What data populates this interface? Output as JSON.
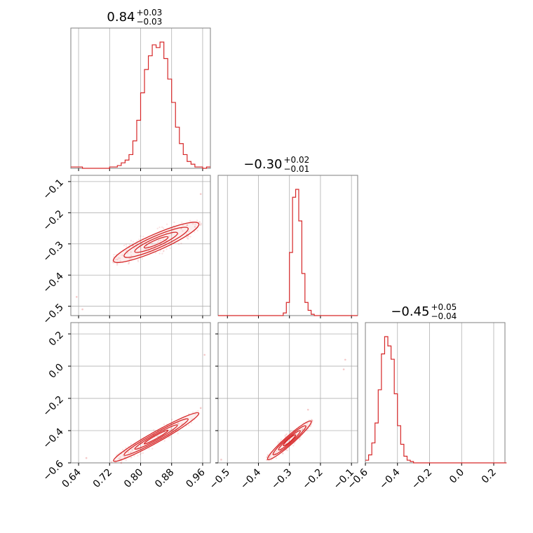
{
  "chart_data": {
    "type": "corner",
    "colors": {
      "series": "#d62728",
      "grid": "#b0b0b0",
      "frame": "#7f7f7f"
    },
    "grid": true,
    "parameters": [
      {
        "median": "0.84",
        "plus": "+0.03",
        "minus": "−0.03",
        "range": [
          0.62,
          0.98
        ],
        "ticks": [
          0.64,
          0.72,
          0.8,
          0.88,
          0.96
        ],
        "tick_labels": [
          "0.64",
          "0.72",
          "0.80",
          "0.88",
          "0.96"
        ]
      },
      {
        "median": "−0.30",
        "plus": "+0.02",
        "minus": "−0.01",
        "range": [
          -0.53,
          -0.08
        ],
        "ticks": [
          -0.5,
          -0.4,
          -0.3,
          -0.2,
          -0.1
        ],
        "tick_labels": [
          "−0.5",
          "−0.4",
          "−0.3",
          "−0.2",
          "−0.1"
        ]
      },
      {
        "median": "−0.45",
        "plus": "+0.05",
        "minus": "−0.04",
        "range": [
          -0.6,
          0.27
        ],
        "ticks": [
          -0.6,
          -0.4,
          -0.2,
          0.0,
          0.2
        ],
        "tick_labels": [
          "−0.6",
          "−0.4",
          "−0.2",
          "0.0",
          "0.2"
        ]
      }
    ],
    "hist1": {
      "x": [
        0.62,
        0.63,
        0.64,
        0.65,
        0.66,
        0.67,
        0.68,
        0.69,
        0.7,
        0.71,
        0.72,
        0.73,
        0.74,
        0.75,
        0.76,
        0.77,
        0.78,
        0.79,
        0.8,
        0.81,
        0.82,
        0.83,
        0.84,
        0.85,
        0.86,
        0.87,
        0.88,
        0.89,
        0.9,
        0.91,
        0.92,
        0.93,
        0.94,
        0.95,
        0.96,
        0.97
      ],
      "counts": [
        1,
        1,
        1,
        0,
        0,
        0,
        0,
        0,
        0,
        0,
        1,
        1,
        2,
        4,
        6,
        10,
        20,
        35,
        55,
        72,
        82,
        90,
        88,
        92,
        80,
        65,
        48,
        30,
        18,
        10,
        5,
        3,
        1,
        1,
        0,
        1
      ]
    },
    "hist2": {
      "x": [
        -0.53,
        -0.52,
        -0.51,
        -0.5,
        -0.49,
        -0.48,
        -0.47,
        -0.46,
        -0.45,
        -0.44,
        -0.43,
        -0.42,
        -0.41,
        -0.4,
        -0.39,
        -0.38,
        -0.37,
        -0.36,
        -0.35,
        -0.34,
        -0.33,
        -0.32,
        -0.31,
        -0.3,
        -0.29,
        -0.28,
        -0.27,
        -0.26,
        -0.25,
        -0.24,
        -0.23,
        -0.22,
        -0.21,
        -0.2,
        -0.19,
        -0.18,
        -0.17,
        -0.16,
        -0.15,
        -0.14,
        -0.13,
        -0.12,
        -0.11,
        -0.1,
        -0.09
      ],
      "counts": [
        0,
        0,
        0,
        0,
        0,
        0,
        0,
        0,
        0,
        0,
        0,
        0,
        0,
        0,
        0,
        0,
        0,
        0,
        0,
        0,
        0,
        2,
        10,
        48,
        90,
        96,
        72,
        32,
        10,
        4,
        1,
        0,
        0,
        0,
        0,
        0,
        0,
        0,
        0,
        0,
        0,
        0,
        0,
        0,
        0
      ]
    },
    "hist3": {
      "x": [
        -0.6,
        -0.58,
        -0.56,
        -0.54,
        -0.52,
        -0.5,
        -0.48,
        -0.46,
        -0.44,
        -0.42,
        -0.4,
        -0.38,
        -0.36,
        -0.34,
        -0.32,
        -0.3,
        -0.28,
        -0.26,
        -0.24,
        -0.22,
        -0.2,
        -0.18,
        -0.16,
        -0.14,
        -0.12,
        -0.1,
        -0.08,
        -0.06,
        -0.04,
        -0.02,
        0.0,
        0.02,
        0.04,
        0.06,
        0.08,
        0.1,
        0.12,
        0.14,
        0.16,
        0.18,
        0.2,
        0.22,
        0.24,
        0.26
      ],
      "counts": [
        2,
        6,
        15,
        30,
        55,
        82,
        95,
        88,
        78,
        52,
        28,
        14,
        5,
        2,
        1,
        0,
        0,
        0,
        0,
        0,
        0,
        0,
        0,
        0,
        0,
        0,
        0,
        0,
        0,
        0,
        0,
        0,
        0,
        0,
        0,
        0,
        0,
        0,
        0,
        0,
        0,
        0,
        0,
        0
      ]
    },
    "scatter_21": {
      "points": [
        [
          0.635,
          -0.47
        ],
        [
          0.65,
          -0.51
        ],
        [
          0.955,
          -0.14
        ],
        [
          0.78,
          -0.305
        ],
        [
          0.77,
          -0.31
        ],
        [
          0.92,
          -0.24
        ],
        [
          0.905,
          -0.25
        ]
      ],
      "center": [
        0.84,
        -0.295
      ],
      "half_length": 0.11,
      "half_width": 0.012
    },
    "scatter_31": {
      "points": [
        [
          0.66,
          -0.57
        ],
        [
          0.955,
          -0.26
        ],
        [
          0.965,
          0.07
        ],
        [
          0.76,
          -0.57
        ],
        [
          0.75,
          -0.6
        ]
      ],
      "center": [
        0.84,
        -0.44
      ],
      "half_length": 0.11,
      "half_width": 0.015
    },
    "scatter_32": {
      "points": [
        [
          -0.52,
          -0.58
        ],
        [
          -0.12,
          0.04
        ],
        [
          -0.125,
          -0.02
        ],
        [
          -0.24,
          -0.27
        ]
      ],
      "center": [
        -0.3,
        -0.46
      ],
      "half_length": 0.07,
      "half_width": 0.012
    }
  }
}
